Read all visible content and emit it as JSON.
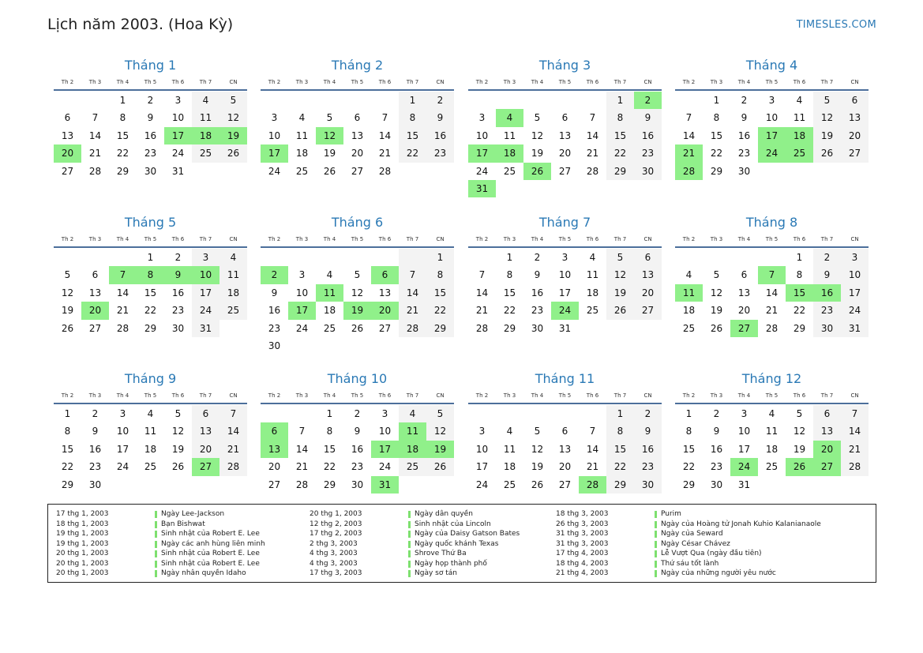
{
  "header": {
    "title": "Lịch năm 2003. (Hoa Kỳ)",
    "site": "TIMESLES.COM"
  },
  "weekdays": [
    "Th 2",
    "Th 3",
    "Th 4",
    "Th 5",
    "Th 6",
    "Th 7",
    "CN"
  ],
  "months": [
    {
      "name": "Tháng 1",
      "offset": 2,
      "days": 31,
      "holidays": [
        17,
        18,
        19,
        20
      ]
    },
    {
      "name": "Tháng 2",
      "offset": 5,
      "days": 28,
      "holidays": [
        12,
        17
      ]
    },
    {
      "name": "Tháng 3",
      "offset": 5,
      "days": 31,
      "holidays": [
        2,
        4,
        17,
        18,
        26,
        31
      ]
    },
    {
      "name": "Tháng 4",
      "offset": 1,
      "days": 30,
      "holidays": [
        17,
        18,
        21,
        24,
        25,
        28
      ]
    },
    {
      "name": "Tháng 5",
      "offset": 3,
      "days": 31,
      "holidays": [
        7,
        8,
        9,
        10,
        20
      ]
    },
    {
      "name": "Tháng 6",
      "offset": 6,
      "days": 30,
      "holidays": [
        2,
        6,
        11,
        17,
        19,
        20
      ]
    },
    {
      "name": "Tháng 7",
      "offset": 1,
      "days": 31,
      "holidays": [
        24
      ]
    },
    {
      "name": "Tháng 8",
      "offset": 4,
      "days": 31,
      "holidays": [
        7,
        11,
        15,
        16,
        27
      ]
    },
    {
      "name": "Tháng 9",
      "offset": 0,
      "days": 30,
      "holidays": [
        27
      ]
    },
    {
      "name": "Tháng 10",
      "offset": 2,
      "days": 31,
      "holidays": [
        6,
        11,
        13,
        17,
        18,
        19,
        31
      ]
    },
    {
      "name": "Tháng 11",
      "offset": 5,
      "days": 30,
      "holidays": [
        28
      ]
    },
    {
      "name": "Tháng 12",
      "offset": 0,
      "days": 31,
      "holidays": [
        20,
        24,
        26,
        27
      ]
    }
  ],
  "holidays": [
    [
      {
        "date": "17 thg 1, 2003",
        "name": "Ngày Lee-Jackson"
      },
      {
        "date": "18 thg 1, 2003",
        "name": "Bạn Bishwat"
      },
      {
        "date": "19 thg 1, 2003",
        "name": "Sinh nhật của Robert E. Lee"
      },
      {
        "date": "19 thg 1, 2003",
        "name": "Ngày các anh hùng liên minh"
      },
      {
        "date": "20 thg 1, 2003",
        "name": "Sinh nhật của Robert E. Lee"
      },
      {
        "date": "20 thg 1, 2003",
        "name": "Sinh nhật của Robert E. Lee"
      },
      {
        "date": "20 thg 1, 2003",
        "name": "Ngày nhân quyền Idaho"
      }
    ],
    [
      {
        "date": "20 thg 1, 2003",
        "name": "Ngày dân quyền"
      },
      {
        "date": "12 thg 2, 2003",
        "name": "Sinh nhật của Lincoln"
      },
      {
        "date": "17 thg 2, 2003",
        "name": "Ngày của Daisy Gatson Bates"
      },
      {
        "date": "2 thg 3, 2003",
        "name": "Ngày quốc khánh Texas"
      },
      {
        "date": "4 thg 3, 2003",
        "name": "Shrove Thứ Ba"
      },
      {
        "date": "4 thg 3, 2003",
        "name": "Ngày họp thành phố"
      },
      {
        "date": "17 thg 3, 2003",
        "name": "Ngày sơ tán"
      }
    ],
    [
      {
        "date": "18 thg 3, 2003",
        "name": "Purim"
      },
      {
        "date": "26 thg 3, 2003",
        "name": "Ngày của Hoàng tử Jonah Kuhio Kalanianaole"
      },
      {
        "date": "31 thg 3, 2003",
        "name": "Ngày của Seward"
      },
      {
        "date": "31 thg 3, 2003",
        "name": "Ngày César Chávez"
      },
      {
        "date": "17 thg 4, 2003",
        "name": "Lễ Vượt Qua (ngày đầu tiên)"
      },
      {
        "date": "18 thg 4, 2003",
        "name": "Thứ sáu tốt lành"
      },
      {
        "date": "21 thg 4, 2003",
        "name": "Ngày của những người yêu nước"
      }
    ]
  ]
}
